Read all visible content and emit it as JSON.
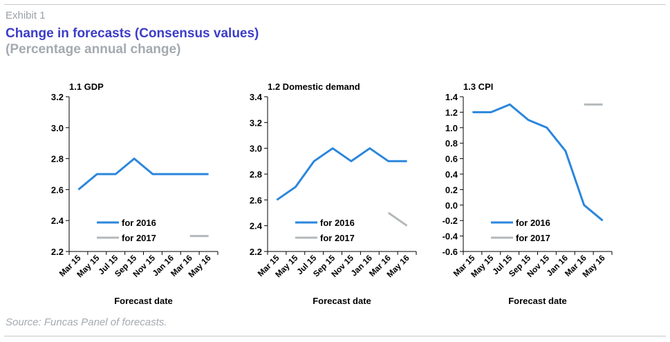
{
  "header": {
    "exhibit": "Exhibit 1",
    "title": "Change in forecasts (Consensus values)",
    "subtitle": "(Percentage annual change)"
  },
  "footer": {
    "source": "Source: Funcas Panel of forecasts."
  },
  "colors": {
    "series_2016": "#2a86dc",
    "series_2017": "#b3b8bb",
    "axis": "#000000"
  },
  "chart_data": [
    {
      "type": "line",
      "title": "1.1 GDP",
      "xlabel": "Forecast date",
      "x": [
        "Mar 15",
        "May 15",
        "Jul 15",
        "Sep 15",
        "Nov 15",
        "Jan 16",
        "Mar 16",
        "May 16"
      ],
      "ylim": [
        2.2,
        3.2
      ],
      "yticks": [
        "2.2",
        "2.4",
        "2.6",
        "2.8",
        "3.0",
        "3.2"
      ],
      "series": [
        {
          "name": "for 2016",
          "values": [
            2.6,
            2.7,
            2.7,
            2.8,
            2.7,
            2.7,
            2.7,
            2.7
          ]
        },
        {
          "name": "for 2017",
          "values": [
            null,
            null,
            null,
            null,
            null,
            null,
            2.3,
            2.3
          ]
        }
      ],
      "legend": "bottom"
    },
    {
      "type": "line",
      "title": "1.2 Domestic demand",
      "xlabel": "Forecast date",
      "x": [
        "Mar 15",
        "May 15",
        "Jul 15",
        "Sep 15",
        "Nov 15",
        "Jan 16",
        "Mar 16",
        "May 16"
      ],
      "ylim": [
        2.2,
        3.4
      ],
      "yticks": [
        "2.2",
        "2.4",
        "2.6",
        "2.8",
        "3.0",
        "3.2",
        "3.4"
      ],
      "series": [
        {
          "name": "for 2016",
          "values": [
            2.6,
            2.7,
            2.9,
            3.0,
            2.9,
            3.0,
            2.9,
            2.9
          ]
        },
        {
          "name": "for 2017",
          "values": [
            null,
            null,
            null,
            null,
            null,
            null,
            2.5,
            2.4
          ]
        }
      ],
      "legend": "bottom"
    },
    {
      "type": "line",
      "title": "1.3 CPI",
      "xlabel": "Forecast date",
      "x": [
        "Mar 15",
        "May 15",
        "Jul 15",
        "Sep 15",
        "Nov 15",
        "Jan 16",
        "Mar 16",
        "May 16"
      ],
      "ylim": [
        -0.6,
        1.4
      ],
      "yticks": [
        "-0.6",
        "-0.4",
        "-0.2",
        "0.0",
        "0.2",
        "0.4",
        "0.6",
        "0.8",
        "1.0",
        "1.2",
        "1.4"
      ],
      "series": [
        {
          "name": "for 2016",
          "values": [
            1.2,
            1.2,
            1.3,
            1.1,
            1.0,
            0.7,
            0.0,
            -0.2
          ]
        },
        {
          "name": "for 2017",
          "values": [
            null,
            null,
            null,
            null,
            null,
            null,
            1.3,
            1.3
          ]
        }
      ],
      "legend": "bottom"
    }
  ]
}
